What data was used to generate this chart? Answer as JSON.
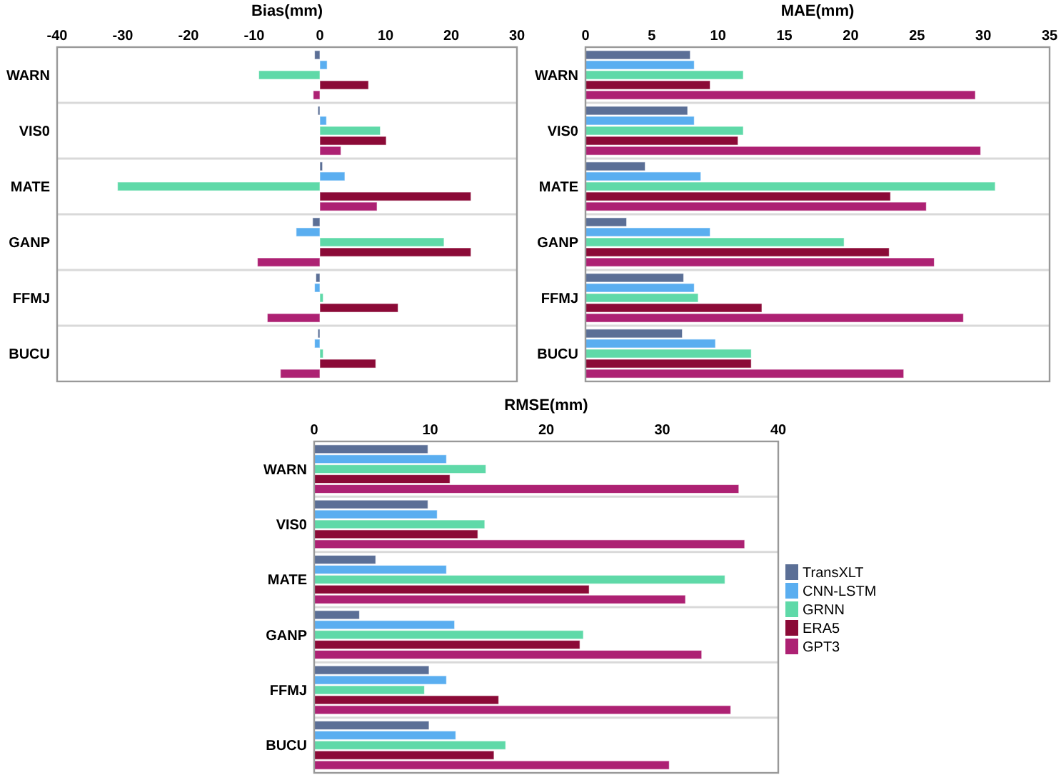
{
  "chart_data": [
    {
      "type": "bar",
      "orientation": "horizontal",
      "title": "Bias(mm)",
      "categories": [
        "WARN",
        "VIS0",
        "MATE",
        "GANP",
        "FFMJ",
        "BUCU"
      ],
      "xlim": [
        -40,
        30
      ],
      "xticks": [
        -40,
        -30,
        -20,
        -10,
        0,
        10,
        20,
        30
      ],
      "grid": "y",
      "legend": false,
      "series": [
        {
          "color": "#5b6f96",
          "values": [
            -0.8,
            -0.3,
            0.4,
            -1.1,
            -0.6,
            -0.3
          ]
        },
        {
          "color": "#5aaef0",
          "values": [
            1.1,
            1.0,
            3.8,
            -3.6,
            -0.8,
            -0.8
          ]
        },
        {
          "color": "#5fd9a8",
          "values": [
            -9.3,
            9.2,
            -30.8,
            18.9,
            0.5,
            0.5
          ]
        },
        {
          "color": "#8b0a37",
          "values": [
            7.4,
            10.1,
            23.0,
            23.0,
            11.9,
            8.5
          ]
        },
        {
          "color": "#ad2173",
          "values": [
            -1.0,
            3.2,
            8.7,
            -9.5,
            -8.0,
            -6.0
          ]
        }
      ]
    },
    {
      "type": "bar",
      "orientation": "horizontal",
      "title": "MAE(mm)",
      "categories": [
        "WARN",
        "VIS0",
        "MATE",
        "GANP",
        "FFMJ",
        "BUCU"
      ],
      "xlim": [
        0,
        35
      ],
      "xticks": [
        0,
        5,
        10,
        15,
        20,
        25,
        30,
        35
      ],
      "grid": "y",
      "legend": false,
      "series": [
        {
          "color": "#5b6f96",
          "values": [
            7.9,
            7.7,
            4.5,
            3.1,
            7.4,
            7.3
          ]
        },
        {
          "color": "#5aaef0",
          "values": [
            8.2,
            8.2,
            8.7,
            9.4,
            8.2,
            9.8
          ]
        },
        {
          "color": "#5fd9a8",
          "values": [
            11.9,
            11.9,
            30.9,
            19.5,
            8.5,
            12.5
          ]
        },
        {
          "color": "#8b0a37",
          "values": [
            9.4,
            11.5,
            23.0,
            22.9,
            13.3,
            12.5
          ]
        },
        {
          "color": "#ad2173",
          "values": [
            29.4,
            29.8,
            25.7,
            26.3,
            28.5,
            24.0
          ]
        }
      ]
    },
    {
      "type": "bar",
      "orientation": "horizontal",
      "title": "RMSE(mm)",
      "categories": [
        "WARN",
        "VIS0",
        "MATE",
        "GANP",
        "FFMJ",
        "BUCU"
      ],
      "xlim": [
        0,
        40
      ],
      "xticks": [
        0,
        10,
        20,
        30,
        40
      ],
      "grid": "y",
      "legend": "right",
      "series": [
        {
          "name": "TransXLT",
          "color": "#5b6f96",
          "values": [
            9.8,
            9.8,
            5.3,
            3.9,
            9.9,
            9.9
          ]
        },
        {
          "name": "CNN-LSTM",
          "color": "#5aaef0",
          "values": [
            11.4,
            10.6,
            11.4,
            12.1,
            11.4,
            12.2
          ]
        },
        {
          "name": "GRNN",
          "color": "#5fd9a8",
          "values": [
            14.8,
            14.7,
            35.4,
            23.2,
            9.5,
            16.5
          ]
        },
        {
          "name": "ERA5",
          "color": "#8b0a37",
          "values": [
            11.7,
            14.1,
            23.7,
            22.9,
            15.9,
            15.5
          ]
        },
        {
          "name": "GPT3",
          "color": "#ad2173",
          "values": [
            36.6,
            37.1,
            32.0,
            33.4,
            35.9,
            30.6
          ]
        }
      ]
    }
  ]
}
